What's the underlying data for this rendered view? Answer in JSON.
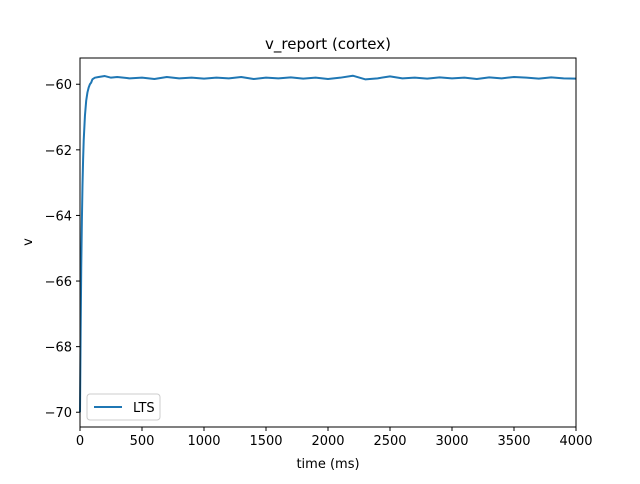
{
  "chart_data": {
    "type": "line",
    "title": "v_report (cortex)",
    "xlabel": "time (ms)",
    "ylabel": "v",
    "xlim": [
      0,
      4000
    ],
    "ylim": [
      -70.45,
      -59.2
    ],
    "xticks": [
      0,
      500,
      1000,
      1500,
      2000,
      2500,
      3000,
      3500,
      4000
    ],
    "xtick_labels": [
      "0",
      "500",
      "1000",
      "1500",
      "2000",
      "2500",
      "3000",
      "3500",
      "4000"
    ],
    "yticks": [
      -70,
      -68,
      -66,
      -64,
      -62,
      -60
    ],
    "ytick_labels": [
      "−70",
      "−68",
      "−66",
      "−64",
      "−62",
      "−60"
    ],
    "grid": false,
    "legend_position": "lower-left",
    "series": [
      {
        "name": "LTS",
        "color": "#1f77b4",
        "x": [
          0,
          5,
          10,
          15,
          20,
          25,
          30,
          40,
          50,
          60,
          70,
          80,
          90,
          100,
          120,
          150,
          200,
          250,
          300,
          400,
          500,
          600,
          700,
          800,
          900,
          1000,
          1100,
          1200,
          1300,
          1400,
          1500,
          1600,
          1700,
          1800,
          1900,
          2000,
          2100,
          2200,
          2300,
          2400,
          2500,
          2600,
          2700,
          2800,
          2900,
          3000,
          3100,
          3200,
          3300,
          3400,
          3500,
          3600,
          3700,
          3800,
          3900,
          4000
        ],
        "y": [
          -70.0,
          -67.6,
          -65.6,
          -64.2,
          -63.1,
          -62.3,
          -61.7,
          -60.95,
          -60.5,
          -60.25,
          -60.1,
          -60.0,
          -59.95,
          -59.85,
          -59.8,
          -59.78,
          -59.75,
          -59.8,
          -59.78,
          -59.82,
          -59.8,
          -59.84,
          -59.78,
          -59.82,
          -59.8,
          -59.83,
          -59.8,
          -59.82,
          -59.78,
          -59.84,
          -59.8,
          -59.82,
          -59.79,
          -59.83,
          -59.8,
          -59.84,
          -59.8,
          -59.74,
          -59.85,
          -59.82,
          -59.76,
          -59.82,
          -59.8,
          -59.83,
          -59.79,
          -59.82,
          -59.8,
          -59.84,
          -59.79,
          -59.82,
          -59.78,
          -59.8,
          -59.83,
          -59.79,
          -59.82,
          -59.83
        ]
      }
    ]
  }
}
